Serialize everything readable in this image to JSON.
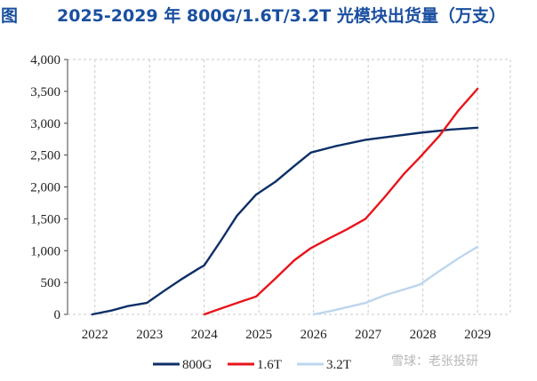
{
  "header": {
    "figure_label": "图"
  },
  "watermark": "雪球：老张投研",
  "chart_data": {
    "type": "line",
    "title": "2025-2029 年 800G/1.6T/3.2T 光模块出货量（万支）",
    "xlabel": "",
    "ylabel": "",
    "x_ticks": [
      "2022",
      "2023",
      "2024",
      "2025",
      "2026",
      "2027",
      "2028",
      "2029"
    ],
    "y_ticks": [
      "0",
      "500",
      "1,000",
      "1,500",
      "2,000",
      "2,500",
      "3,000",
      "3,500",
      "4,000"
    ],
    "ylim": [
      0,
      4000
    ],
    "xlim": [
      2021.5,
      2029.6
    ],
    "grid": "dashed vertical",
    "legend_position": "bottom",
    "series": [
      {
        "name": "800G",
        "color": "#0d2f68",
        "points": [
          [
            2021.95,
            0
          ],
          [
            2022.3,
            60
          ],
          [
            2022.6,
            130
          ],
          [
            2022.95,
            180
          ],
          [
            2023.25,
            360
          ],
          [
            2023.6,
            560
          ],
          [
            2023.9,
            720
          ],
          [
            2024.0,
            770
          ],
          [
            2024.3,
            1150
          ],
          [
            2024.6,
            1550
          ],
          [
            2024.95,
            1880
          ],
          [
            2025.3,
            2080
          ],
          [
            2025.65,
            2330
          ],
          [
            2025.95,
            2540
          ],
          [
            2026.4,
            2640
          ],
          [
            2026.95,
            2740
          ],
          [
            2027.5,
            2800
          ],
          [
            2027.95,
            2850
          ],
          [
            2028.5,
            2900
          ],
          [
            2029.0,
            2930
          ]
        ]
      },
      {
        "name": "1.6T",
        "color": "#e8141b",
        "points": [
          [
            2024.0,
            0
          ],
          [
            2024.3,
            90
          ],
          [
            2024.6,
            180
          ],
          [
            2024.95,
            280
          ],
          [
            2025.3,
            560
          ],
          [
            2025.65,
            850
          ],
          [
            2025.95,
            1040
          ],
          [
            2026.3,
            1200
          ],
          [
            2026.6,
            1330
          ],
          [
            2026.95,
            1500
          ],
          [
            2027.3,
            1840
          ],
          [
            2027.65,
            2200
          ],
          [
            2027.95,
            2470
          ],
          [
            2028.3,
            2800
          ],
          [
            2028.65,
            3200
          ],
          [
            2029.0,
            3540
          ]
        ]
      },
      {
        "name": "3.2T",
        "color": "#bcd6ee",
        "points": [
          [
            2026.0,
            0
          ],
          [
            2026.3,
            50
          ],
          [
            2026.6,
            110
          ],
          [
            2026.95,
            180
          ],
          [
            2027.3,
            300
          ],
          [
            2027.65,
            390
          ],
          [
            2027.95,
            470
          ],
          [
            2028.3,
            680
          ],
          [
            2028.65,
            880
          ],
          [
            2029.0,
            1060
          ]
        ]
      }
    ]
  }
}
